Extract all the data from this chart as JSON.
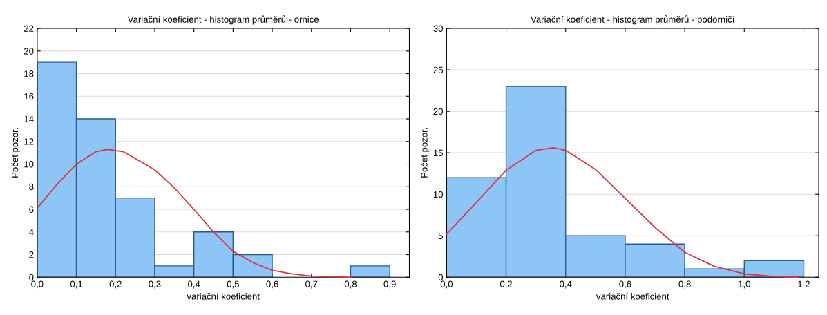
{
  "chart_data": [
    {
      "type": "histogram",
      "title": "Variační koeficient - histogram průměrů - ornice",
      "xlabel": "variační koeficient",
      "ylabel": "Počet pozor.",
      "bins": [
        0,
        0.1,
        0.2,
        0.3,
        0.4,
        0.5,
        0.6,
        0.7,
        0.8,
        0.9
      ],
      "series": [
        {
          "color": "#8ec5f7",
          "values": [
            19,
            14,
            7,
            1,
            4,
            2,
            0,
            0,
            1
          ]
        },
        {
          "type": "line",
          "color": "#d9363e",
          "x": [
            0,
            0.05,
            0.1,
            0.15,
            0.18,
            0.22,
            0.3,
            0.35,
            0.4,
            0.45,
            0.5,
            0.55,
            0.6,
            0.65,
            0.7,
            0.8
          ],
          "values": [
            6.1,
            8.2,
            10,
            11.1,
            11.3,
            11.1,
            9.5,
            7.9,
            6,
            4,
            2.3,
            1.3,
            0.6,
            0.3,
            0.1,
            0
          ]
        }
      ],
      "xlim": [
        0,
        0.95
      ],
      "xticks": [
        {
          "value": 0,
          "label": "0,0"
        },
        {
          "value": 0.1,
          "label": "0,1"
        },
        {
          "value": 0.2,
          "label": "0,2"
        },
        {
          "value": 0.3,
          "label": "0,3"
        },
        {
          "value": 0.4,
          "label": "0,4"
        },
        {
          "value": 0.5,
          "label": "0,5"
        },
        {
          "value": 0.6,
          "label": "0,6"
        },
        {
          "value": 0.7,
          "label": "0,7"
        },
        {
          "value": 0.8,
          "label": "0,8"
        },
        {
          "value": 0.9,
          "label": "0,9"
        }
      ],
      "ylim": [
        0,
        22
      ],
      "yticks": [
        0,
        2,
        4,
        6,
        8,
        10,
        12,
        14,
        16,
        18,
        20,
        22
      ],
      "grid": "y"
    },
    {
      "type": "histogram",
      "title": "Variační koeficient - histogram průměrů - podorničí",
      "xlabel": "variační koeficient",
      "ylabel": "Počet pozor.",
      "bins": [
        0,
        0.2,
        0.4,
        0.6,
        0.8,
        1.0,
        1.2
      ],
      "series": [
        {
          "color": "#8ec5f7",
          "values": [
            12,
            23,
            5,
            4,
            1,
            2
          ]
        },
        {
          "type": "line",
          "color": "#d9363e",
          "x": [
            0,
            0.1,
            0.2,
            0.3,
            0.36,
            0.4,
            0.5,
            0.6,
            0.7,
            0.8,
            0.9,
            1.0,
            1.1,
            1.18
          ],
          "values": [
            5.2,
            9,
            12.9,
            15.3,
            15.6,
            15.3,
            13,
            9.5,
            6,
            3,
            1.3,
            0.4,
            0.1,
            0
          ]
        }
      ],
      "xlim": [
        0,
        1.25
      ],
      "xticks": [
        {
          "value": 0,
          "label": "0,0"
        },
        {
          "value": 0.2,
          "label": "0,2"
        },
        {
          "value": 0.4,
          "label": "0,4"
        },
        {
          "value": 0.6,
          "label": "0,6"
        },
        {
          "value": 0.8,
          "label": "0,8"
        },
        {
          "value": 1.0,
          "label": "1,0"
        },
        {
          "value": 1.2,
          "label": "1,2"
        }
      ],
      "ylim": [
        0,
        30
      ],
      "yticks": [
        0,
        5,
        10,
        15,
        20,
        25,
        30
      ],
      "grid": "y"
    }
  ]
}
